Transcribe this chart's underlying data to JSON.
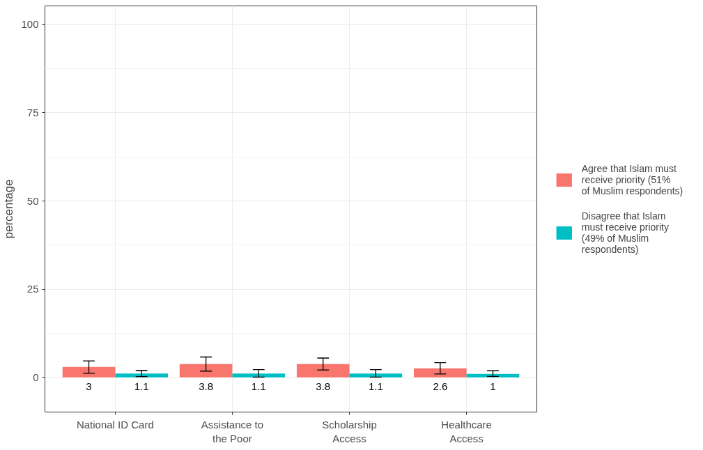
{
  "chart_data": {
    "type": "bar",
    "ylabel": "percentage",
    "categories": [
      "National ID Card",
      "Assistance to\nthe Poor",
      "Scholarship\nAccess",
      "Healthcare\nAccess"
    ],
    "series": [
      {
        "name": "Agree that Islam must receive priority (51% of Muslim respondents)",
        "color": "#f8766d",
        "values": [
          3,
          3.8,
          3.8,
          2.6
        ],
        "errors": [
          [
            1.2,
            4.7
          ],
          [
            1.8,
            5.8
          ],
          [
            2.1,
            5.5
          ],
          [
            1.0,
            4.2
          ]
        ]
      },
      {
        "name": "Disagree that Islam must receive priority (49% of Muslim respondents)",
        "color": "#00bfc4",
        "values": [
          1.1,
          1.1,
          1.1,
          1
        ],
        "errors": [
          [
            0.25,
            2.0
          ],
          [
            0.1,
            2.2
          ],
          [
            0.1,
            2.2
          ],
          [
            0.3,
            1.9
          ]
        ]
      }
    ],
    "ylim": [
      -9.8,
      105.3
    ],
    "yticks": [
      0,
      25,
      50,
      75,
      100
    ],
    "grid": true,
    "legend": "right",
    "data_labels": true
  }
}
